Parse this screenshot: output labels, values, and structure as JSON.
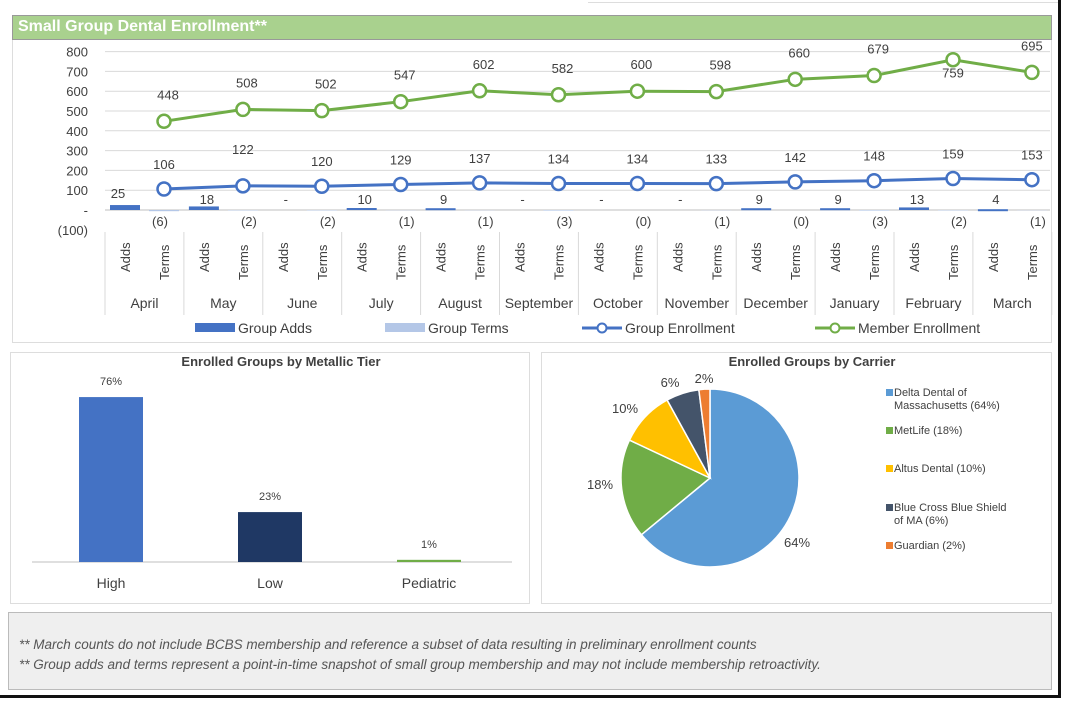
{
  "header": {
    "title": "Small Group Dental Enrollment**"
  },
  "footnotes": [
    "** March counts do not include BCBS membership and reference a subset of data resulting in preliminary enrollment counts",
    "** Group adds and terms represent a point-in-time snapshot of small group membership and may not include membership retroactivity."
  ],
  "chart_data": [
    {
      "type": "bar+line",
      "title": "",
      "months": [
        "April",
        "May",
        "June",
        "July",
        "August",
        "September",
        "October",
        "November",
        "December",
        "January",
        "February",
        "March"
      ],
      "subcategories": [
        "Adds",
        "Terms"
      ],
      "yticks": [
        "800",
        "700",
        "600",
        "500",
        "400",
        "300",
        "200",
        "100",
        "-",
        "(100)"
      ],
      "ylim": [
        -100,
        800
      ],
      "grid": true,
      "legend": "bottom",
      "series": [
        {
          "name": "Group Adds",
          "type": "bar",
          "color": "#4472c4",
          "values": [
            25,
            18,
            0,
            10,
            9,
            0,
            0,
            0,
            9,
            9,
            13,
            4
          ],
          "labels": [
            "25",
            "18",
            "-",
            "10",
            "9",
            "-",
            "-",
            "-",
            "9",
            "9",
            "13",
            "4"
          ]
        },
        {
          "name": "Group Terms",
          "type": "bar",
          "color": "#b4c7e7",
          "values": [
            -6,
            -2,
            -2,
            -1,
            -1,
            -3,
            0,
            -1,
            0,
            -3,
            -2,
            -1
          ],
          "labels": [
            "(6)",
            "(2)",
            "(2)",
            "(1)",
            "(1)",
            "(3)",
            "(0)",
            "(1)",
            "(0)",
            "(3)",
            "(2)",
            "(1)"
          ]
        },
        {
          "name": "Group Enrollment",
          "type": "line",
          "color": "#4472c4",
          "values": [
            106,
            122,
            120,
            129,
            137,
            134,
            134,
            133,
            142,
            148,
            159,
            153
          ]
        },
        {
          "name": "Member Enrollment",
          "type": "line",
          "color": "#70ad47",
          "values": [
            448,
            508,
            502,
            547,
            602,
            582,
            600,
            598,
            660,
            679,
            759,
            695
          ]
        }
      ]
    },
    {
      "type": "bar",
      "title": "Enrolled Groups by Metallic Tier",
      "categories": [
        "High",
        "Low",
        "Pediatric"
      ],
      "values": [
        76,
        23,
        1
      ],
      "labels": [
        "76%",
        "23%",
        "1%"
      ],
      "colors": [
        "#4472c4",
        "#1f3864",
        "#70ad47"
      ]
    },
    {
      "type": "pie",
      "title": "Enrolled Groups by Carrier",
      "legend": "right",
      "slices": [
        {
          "name": "Delta Dental of Massachusetts (64%)",
          "value": 64,
          "label": "64%",
          "color": "#5b9bd5"
        },
        {
          "name": "MetLife (18%)",
          "value": 18,
          "label": "18%",
          "color": "#70ad47"
        },
        {
          "name": "Altus Dental (10%)",
          "value": 10,
          "label": "10%",
          "color": "#ffc000"
        },
        {
          "name": "Blue Cross Blue Shield of MA (6%)",
          "value": 6,
          "label": "6%",
          "color": "#44546a"
        },
        {
          "name": "Guardian (2%)",
          "value": 2,
          "label": "2%",
          "color": "#ed7d31"
        }
      ]
    }
  ]
}
